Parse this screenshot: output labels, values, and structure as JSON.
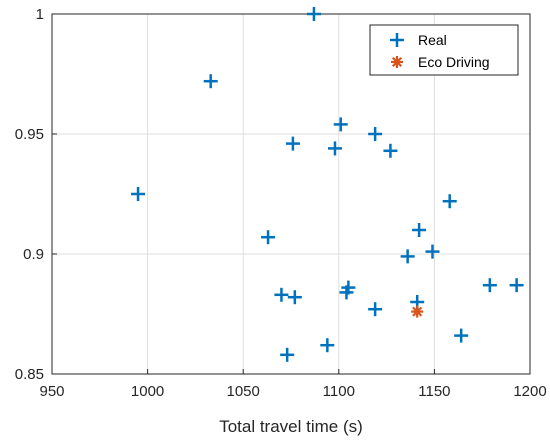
{
  "chart_data": {
    "type": "scatter",
    "title": "",
    "xlabel": "Total travel time (s)",
    "ylabel": "",
    "xlim": [
      950,
      1200
    ],
    "ylim": [
      0.85,
      1.0
    ],
    "xticks": [
      "950",
      "1000",
      "1050",
      "1100",
      "1150",
      "1200"
    ],
    "yticks": [
      "0.85",
      "0.9",
      "0.95",
      "1"
    ],
    "grid": true,
    "legend_position": "top-right",
    "series": [
      {
        "name": "Real",
        "marker": "plus",
        "color": "#0072BD",
        "points": [
          {
            "x": 995,
            "y": 0.925
          },
          {
            "x": 1033,
            "y": 0.972
          },
          {
            "x": 1063,
            "y": 0.907
          },
          {
            "x": 1070,
            "y": 0.883
          },
          {
            "x": 1073,
            "y": 0.858
          },
          {
            "x": 1076,
            "y": 0.946
          },
          {
            "x": 1077,
            "y": 0.882
          },
          {
            "x": 1087,
            "y": 1.0
          },
          {
            "x": 1094,
            "y": 0.862
          },
          {
            "x": 1098,
            "y": 0.944
          },
          {
            "x": 1101,
            "y": 0.954
          },
          {
            "x": 1104,
            "y": 0.884
          },
          {
            "x": 1105,
            "y": 0.886
          },
          {
            "x": 1119,
            "y": 0.877
          },
          {
            "x": 1119,
            "y": 0.95
          },
          {
            "x": 1127,
            "y": 0.943
          },
          {
            "x": 1136,
            "y": 0.899
          },
          {
            "x": 1141,
            "y": 0.88
          },
          {
            "x": 1142,
            "y": 0.91
          },
          {
            "x": 1149,
            "y": 0.901
          },
          {
            "x": 1158,
            "y": 0.922
          },
          {
            "x": 1164,
            "y": 0.866
          },
          {
            "x": 1179,
            "y": 0.887
          },
          {
            "x": 1193,
            "y": 0.887
          }
        ]
      },
      {
        "name": "Eco Driving",
        "marker": "asterisk",
        "color": "#D95319",
        "points": [
          {
            "x": 1141,
            "y": 0.876
          }
        ]
      }
    ]
  }
}
